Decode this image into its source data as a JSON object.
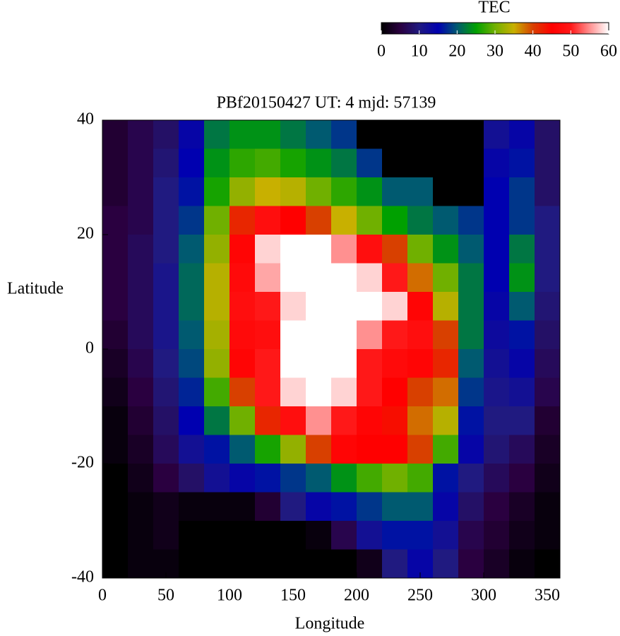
{
  "chart_data": {
    "type": "heatmap",
    "title": "PBf20150427  UT: 4  mjd: 57139",
    "xlabel": "Longitude",
    "ylabel": "Latitude",
    "xlim": [
      0,
      360
    ],
    "ylim": [
      -40,
      40
    ],
    "xticks": [
      0,
      50,
      100,
      150,
      200,
      250,
      300,
      350
    ],
    "yticks": [
      -40,
      -20,
      0,
      20,
      40
    ],
    "x": [
      10,
      30,
      50,
      70,
      90,
      110,
      130,
      150,
      170,
      190,
      210,
      230,
      250,
      270,
      290,
      310,
      330,
      350
    ],
    "y": [
      37.5,
      32.5,
      27.5,
      22.5,
      17.5,
      12.5,
      7.5,
      2.5,
      -2.5,
      -7.5,
      -12.5,
      -17.5,
      -22.5,
      -27.5,
      -32.5,
      -37.5
    ],
    "values": [
      [
        4,
        6,
        8,
        14,
        22,
        24,
        24,
        22,
        20,
        18,
        0,
        0,
        0,
        0,
        0,
        12,
        14,
        8
      ],
      [
        4,
        6,
        9,
        15,
        24,
        27,
        28,
        26,
        24,
        22,
        18,
        0,
        0,
        0,
        0,
        14,
        16,
        8
      ],
      [
        4,
        6,
        10,
        16,
        26,
        32,
        35,
        34,
        30,
        27,
        24,
        20,
        20,
        0,
        0,
        15,
        18,
        8
      ],
      [
        5,
        6,
        10,
        18,
        30,
        42,
        48,
        45,
        40,
        35,
        30,
        25,
        22,
        20,
        18,
        15,
        18,
        10
      ],
      [
        5,
        7,
        10,
        20,
        32,
        46,
        58,
        60,
        60,
        55,
        48,
        40,
        30,
        24,
        20,
        15,
        22,
        10
      ],
      [
        5,
        7,
        11,
        21,
        34,
        47,
        56,
        60,
        60,
        60,
        58,
        50,
        38,
        30,
        22,
        15,
        24,
        10
      ],
      [
        5,
        7,
        11,
        21,
        34,
        48,
        50,
        58,
        60,
        60,
        60,
        58,
        46,
        34,
        22,
        14,
        20,
        9
      ],
      [
        4,
        7,
        11,
        20,
        33,
        47,
        48,
        60,
        60,
        60,
        55,
        50,
        48,
        40,
        22,
        13,
        16,
        8
      ],
      [
        3,
        6,
        10,
        19,
        32,
        46,
        50,
        60,
        60,
        60,
        50,
        47,
        46,
        42,
        20,
        12,
        14,
        7
      ],
      [
        2,
        5,
        9,
        17,
        28,
        40,
        50,
        58,
        60,
        58,
        50,
        45,
        40,
        38,
        18,
        11,
        12,
        6
      ],
      [
        1,
        4,
        8,
        15,
        22,
        30,
        42,
        48,
        55,
        50,
        46,
        44,
        38,
        34,
        16,
        10,
        10,
        4
      ],
      [
        1,
        3,
        7,
        12,
        16,
        20,
        26,
        32,
        40,
        46,
        45,
        45,
        40,
        28,
        14,
        9,
        7,
        3
      ],
      [
        0,
        2,
        5,
        8,
        12,
        14,
        16,
        18,
        20,
        24,
        28,
        30,
        28,
        16,
        10,
        7,
        5,
        2
      ],
      [
        0,
        1,
        2,
        1,
        1,
        1,
        4,
        10,
        14,
        16,
        18,
        20,
        20,
        14,
        8,
        5,
        3,
        1
      ],
      [
        0,
        1,
        2,
        0,
        0,
        0,
        0,
        0,
        1,
        6,
        12,
        16,
        16,
        12,
        6,
        4,
        2,
        1
      ],
      [
        0,
        1,
        1,
        0,
        0,
        0,
        0,
        0,
        0,
        0,
        2,
        10,
        14,
        10,
        5,
        3,
        1,
        0
      ]
    ],
    "colorbar_label": "TEC",
    "clim": [
      0,
      60
    ],
    "cticks": [
      0,
      10,
      20,
      30,
      40,
      50,
      60
    ],
    "colormap": [
      [
        0,
        "#000000"
      ],
      [
        5,
        "#2a0040"
      ],
      [
        10,
        "#201a80"
      ],
      [
        15,
        "#0000b0"
      ],
      [
        20,
        "#005a70"
      ],
      [
        25,
        "#00a000"
      ],
      [
        30,
        "#70b000"
      ],
      [
        35,
        "#c8b000"
      ],
      [
        40,
        "#d84000"
      ],
      [
        45,
        "#ff0000"
      ],
      [
        50,
        "#ff1818"
      ],
      [
        55,
        "#ff9090"
      ],
      [
        60,
        "#ffffff"
      ]
    ]
  }
}
